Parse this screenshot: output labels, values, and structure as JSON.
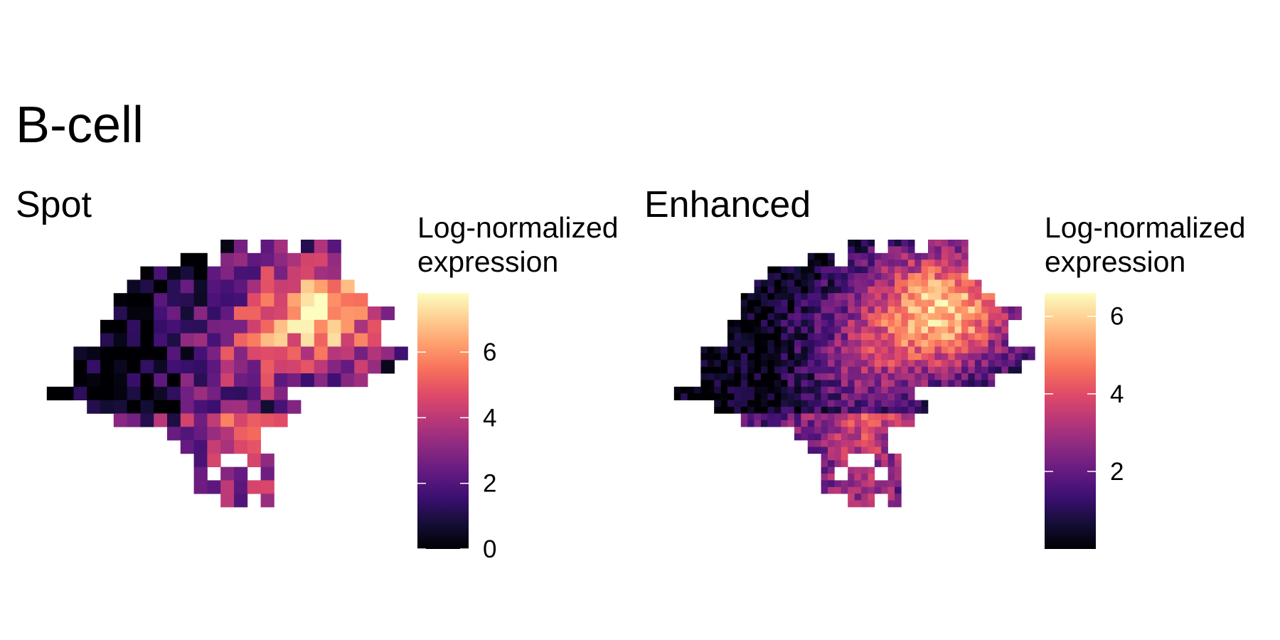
{
  "title": "B-cell",
  "chart_data": [
    {
      "type": "heatmap",
      "title": "Spot",
      "legend_title": "Log-normalized\nexpression",
      "legend_ticks": [
        0,
        2,
        4,
        6
      ],
      "value_range": [
        0,
        7.8
      ],
      "colormap": [
        "#000004",
        "#140e36",
        "#3b0f70",
        "#641a80",
        "#8c2981",
        "#b73779",
        "#de4968",
        "#f7705c",
        "#fe9f6d",
        "#fecf92",
        "#fcfdbf"
      ],
      "grid_rows": [
        "..............dd.dd.dnn.",
        "...........dd.dddddnnnn.",
        "........dddddddddddnnnn.",
        ".......dddddddddddddnnnd",
        "......ddddddddddddddnnnnn",
        "......dddddddddddddddnnnnnn",
        ".....ddddddddddddddddnnnnn",
        ".....dddddddddddddddddnnnn",
        "...dddddddddddddddddddnnnnnn",
        "...ddddddddddddddddddnnnnnn",
        "...dddddddddddddddddddnnn",
        ".dddddddddddddddddd",
        "....dddddddddddddddd",
        "......ddddddddddddd",
        "..........ddddddd",
        "...........dddddd",
        "............dd..dd",
        "............d.dd.d",
        "............dddddd.",
        "..............dd.d"
      ]
    },
    {
      "type": "heatmap",
      "title": "Enhanced",
      "legend_title": "Log-normalized\nexpression",
      "legend_ticks": [
        2,
        4,
        6
      ],
      "value_range": [
        0,
        6.6
      ],
      "colormap": [
        "#000004",
        "#140e36",
        "#3b0f70",
        "#641a80",
        "#8c2981",
        "#b73779",
        "#de4968",
        "#f7705c",
        "#fe9f6d",
        "#fecf92",
        "#fcfdbf"
      ]
    }
  ]
}
